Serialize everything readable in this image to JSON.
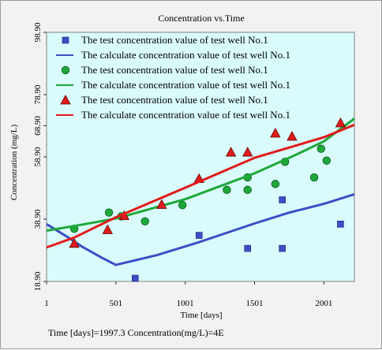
{
  "chart_data": {
    "type": "line",
    "title": "Concentration vs.Time",
    "xlabel": "Time [days]",
    "ylabel": "Concentration (mg/L)",
    "xlim": [
      1,
      2221
    ],
    "ylim": [
      18.9,
      98.9
    ],
    "xticks": [
      1,
      501,
      1001,
      1501,
      2001
    ],
    "yticks": [
      18.9,
      38.9,
      58.9,
      68.9,
      78.9,
      98.9
    ],
    "ytick_labels": [
      "18.90",
      "38.90",
      "58.90",
      "68.90",
      "78.90",
      "98.90"
    ],
    "grid": false,
    "legend_position": "top-left",
    "series": [
      {
        "name": "The test concentration value of test well No.1",
        "kind": "markers",
        "marker": "square",
        "color": "#3a4fc4",
        "points": [
          [
            640,
            19.9
          ],
          [
            1101,
            33.7
          ],
          [
            1451,
            29.5
          ],
          [
            1701,
            29.5
          ],
          [
            1701,
            45.1
          ],
          [
            2121,
            37.3
          ]
        ]
      },
      {
        "name": "The calculate concentration value of test well No.1",
        "kind": "line",
        "color": "#3a4fc4",
        "points": [
          [
            1,
            37.3
          ],
          [
            140,
            33.5
          ],
          [
            260,
            30.0
          ],
          [
            400,
            26.5
          ],
          [
            501,
            24.2
          ],
          [
            801,
            27.4
          ],
          [
            1101,
            31.5
          ],
          [
            1501,
            37.5
          ],
          [
            1751,
            41.0
          ],
          [
            2001,
            43.8
          ],
          [
            2221,
            46.9
          ]
        ]
      },
      {
        "name": "The test concentration value of test well No.1",
        "kind": "markers",
        "marker": "circle",
        "color": "#1fa83a",
        "points": [
          [
            201,
            35.8
          ],
          [
            451,
            41.0
          ],
          [
            541,
            39.8
          ],
          [
            711,
            38.2
          ],
          [
            981,
            43.4
          ],
          [
            1301,
            48.3
          ],
          [
            1451,
            48.3
          ],
          [
            1451,
            52.3
          ],
          [
            1651,
            50.2
          ],
          [
            1721,
            57.3
          ],
          [
            1931,
            52.3
          ],
          [
            1981,
            61.5
          ],
          [
            2021,
            57.7
          ]
        ]
      },
      {
        "name": "The calculate concentration value of test well No.1",
        "kind": "line",
        "color": "#1fa83a",
        "points": [
          [
            1,
            35.2
          ],
          [
            201,
            36.7
          ],
          [
            501,
            39.1
          ],
          [
            1001,
            45.3
          ],
          [
            1501,
            53.6
          ],
          [
            1801,
            59.6
          ],
          [
            2001,
            63.9
          ],
          [
            2221,
            71.2
          ]
        ]
      },
      {
        "name": "The test concentration value of test well No.1",
        "kind": "markers",
        "marker": "triangle",
        "color": "#e01b1b",
        "points": [
          [
            201,
            31.1
          ],
          [
            441,
            35.5
          ],
          [
            561,
            40.0
          ],
          [
            831,
            43.6
          ],
          [
            1101,
            51.9
          ],
          [
            1331,
            60.4
          ],
          [
            1451,
            60.4
          ],
          [
            1651,
            66.5
          ],
          [
            1771,
            65.5
          ],
          [
            2121,
            69.8
          ]
        ]
      },
      {
        "name": "The calculate concentration value of test well No.1",
        "kind": "line",
        "color": "#e01b1b",
        "points": [
          [
            1,
            29.8
          ],
          [
            201,
            33.0
          ],
          [
            501,
            39.5
          ],
          [
            1001,
            49.0
          ],
          [
            1501,
            58.6
          ],
          [
            2001,
            65.2
          ],
          [
            2221,
            69.2
          ]
        ]
      }
    ]
  },
  "status": {
    "text": "Time [days]=1997.3 Concentration(mg/L)=4E"
  }
}
